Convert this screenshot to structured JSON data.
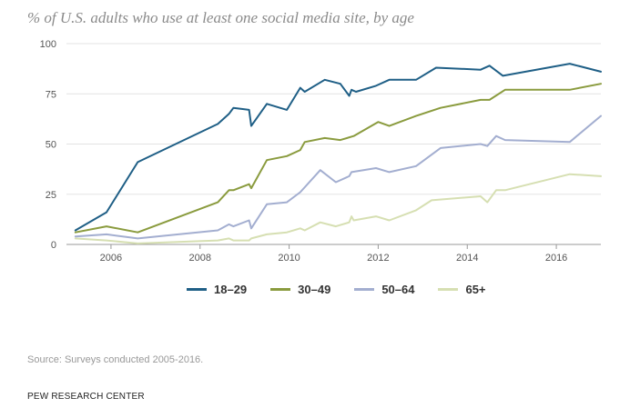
{
  "title": "% of U.S. adults who use at least one social media site, by age",
  "source": "Source: Surveys conducted 2005-2016.",
  "credit": "PEW RESEARCH CENTER",
  "chart_data": {
    "type": "line",
    "xlim": [
      2005.0,
      2017.0
    ],
    "ylim": [
      0,
      100
    ],
    "x_ticks": [
      2006,
      2008,
      2010,
      2012,
      2014,
      2016
    ],
    "y_ticks": [
      0,
      25,
      50,
      75,
      100
    ],
    "grid": "horizontal",
    "legend_position": "bottom",
    "series": [
      {
        "name": "18–29",
        "color": "#1f5f86",
        "points": [
          [
            2005.2,
            7
          ],
          [
            2005.9,
            16
          ],
          [
            2006.6,
            41
          ],
          [
            2008.4,
            60
          ],
          [
            2008.65,
            65
          ],
          [
            2008.75,
            68
          ],
          [
            2009.1,
            67
          ],
          [
            2009.15,
            59
          ],
          [
            2009.5,
            70
          ],
          [
            2009.95,
            67
          ],
          [
            2010.25,
            78
          ],
          [
            2010.35,
            76
          ],
          [
            2010.8,
            82
          ],
          [
            2011.15,
            80
          ],
          [
            2011.35,
            74
          ],
          [
            2011.4,
            77
          ],
          [
            2011.5,
            76
          ],
          [
            2011.95,
            79
          ],
          [
            2012.25,
            82
          ],
          [
            2012.85,
            82
          ],
          [
            2013.3,
            88
          ],
          [
            2014.3,
            87
          ],
          [
            2014.5,
            89
          ],
          [
            2014.8,
            84
          ],
          [
            2016.3,
            90
          ],
          [
            2017.0,
            86
          ]
        ]
      },
      {
        "name": "30–49",
        "color": "#8a9b3e",
        "points": [
          [
            2005.2,
            6
          ],
          [
            2005.9,
            9
          ],
          [
            2006.6,
            6
          ],
          [
            2008.4,
            21
          ],
          [
            2008.65,
            27
          ],
          [
            2008.75,
            27
          ],
          [
            2009.1,
            30
          ],
          [
            2009.15,
            28
          ],
          [
            2009.5,
            42
          ],
          [
            2009.95,
            44
          ],
          [
            2010.25,
            47
          ],
          [
            2010.35,
            51
          ],
          [
            2010.8,
            53
          ],
          [
            2011.15,
            52
          ],
          [
            2011.45,
            54
          ],
          [
            2012.0,
            61
          ],
          [
            2012.25,
            59
          ],
          [
            2012.85,
            64
          ],
          [
            2013.4,
            68
          ],
          [
            2014.3,
            72
          ],
          [
            2014.5,
            72
          ],
          [
            2014.85,
            77
          ],
          [
            2016.3,
            77
          ],
          [
            2017.0,
            80
          ]
        ]
      },
      {
        "name": "50–64",
        "color": "#a3aed0",
        "points": [
          [
            2005.2,
            4
          ],
          [
            2005.9,
            5
          ],
          [
            2006.6,
            3
          ],
          [
            2008.4,
            7
          ],
          [
            2008.65,
            10
          ],
          [
            2008.75,
            9
          ],
          [
            2009.1,
            12
          ],
          [
            2009.15,
            8
          ],
          [
            2009.5,
            20
          ],
          [
            2009.95,
            21
          ],
          [
            2010.25,
            26
          ],
          [
            2010.7,
            37
          ],
          [
            2011.05,
            31
          ],
          [
            2011.35,
            34
          ],
          [
            2011.4,
            36
          ],
          [
            2011.95,
            38
          ],
          [
            2012.25,
            36
          ],
          [
            2012.85,
            39
          ],
          [
            2013.4,
            48
          ],
          [
            2014.3,
            50
          ],
          [
            2014.45,
            49
          ],
          [
            2014.65,
            54
          ],
          [
            2014.85,
            52
          ],
          [
            2016.3,
            51
          ],
          [
            2017.0,
            64
          ]
        ]
      },
      {
        "name": "65+",
        "color": "#d6dfb2",
        "points": [
          [
            2005.2,
            3
          ],
          [
            2005.9,
            2
          ],
          [
            2006.6,
            0.5
          ],
          [
            2008.4,
            2
          ],
          [
            2008.65,
            3
          ],
          [
            2008.75,
            2
          ],
          [
            2009.1,
            2
          ],
          [
            2009.15,
            3
          ],
          [
            2009.5,
            5
          ],
          [
            2009.95,
            6
          ],
          [
            2010.25,
            8
          ],
          [
            2010.35,
            7
          ],
          [
            2010.7,
            11
          ],
          [
            2011.05,
            9
          ],
          [
            2011.35,
            11
          ],
          [
            2011.4,
            14
          ],
          [
            2011.45,
            12
          ],
          [
            2011.95,
            14
          ],
          [
            2012.25,
            12
          ],
          [
            2012.85,
            17
          ],
          [
            2013.2,
            22
          ],
          [
            2014.3,
            24
          ],
          [
            2014.45,
            21
          ],
          [
            2014.65,
            27
          ],
          [
            2014.85,
            27
          ],
          [
            2016.3,
            35
          ],
          [
            2017.0,
            34
          ]
        ]
      }
    ]
  }
}
